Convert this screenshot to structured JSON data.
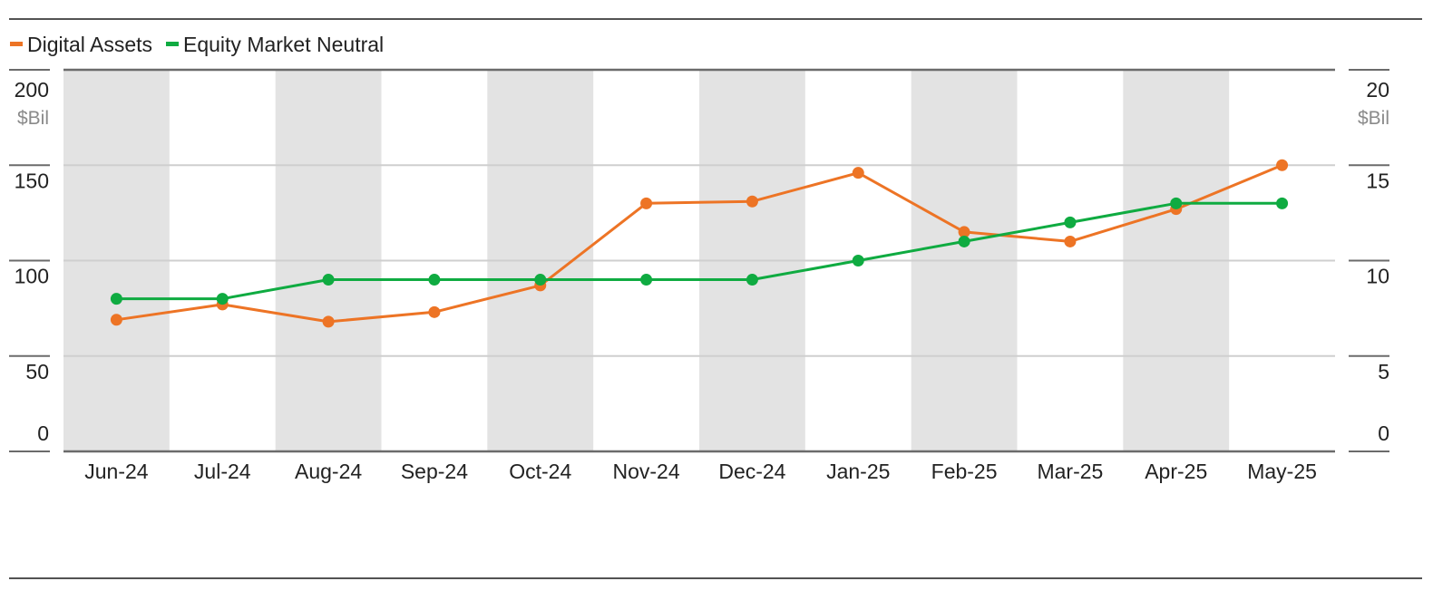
{
  "chart_data": {
    "type": "line",
    "categories": [
      "Jun-24",
      "Jul-24",
      "Aug-24",
      "Sep-24",
      "Oct-24",
      "Nov-24",
      "Dec-24",
      "Jan-25",
      "Feb-25",
      "Mar-25",
      "Apr-25",
      "May-25"
    ],
    "series": [
      {
        "name": "Digital Assets",
        "axis": "left",
        "color": "#ed7425",
        "values": [
          69,
          77,
          68,
          73,
          87,
          130,
          131,
          146,
          115,
          110,
          127,
          150
        ]
      },
      {
        "name": "Equity Market Neutral",
        "axis": "right",
        "color": "#0fab41",
        "values": [
          8,
          8,
          9,
          9,
          9,
          9,
          9,
          10,
          11,
          12,
          13,
          13
        ]
      }
    ],
    "y_left": {
      "ylim": [
        0,
        200
      ],
      "ticks": [
        "0",
        "50",
        "100",
        "150",
        "200"
      ],
      "unit": "$Bil"
    },
    "y_right": {
      "ylim": [
        0,
        20
      ],
      "ticks": [
        "0",
        "5",
        "10",
        "15",
        "20"
      ],
      "unit": "$Bil"
    },
    "grid": true,
    "alternating_column_shading": true,
    "legend_position": "top-left"
  },
  "colors": {
    "band": "#e3e3e3",
    "grid": "#cfcfcf",
    "axis": "#6b6b6b",
    "rule": "#1a1a1a"
  }
}
